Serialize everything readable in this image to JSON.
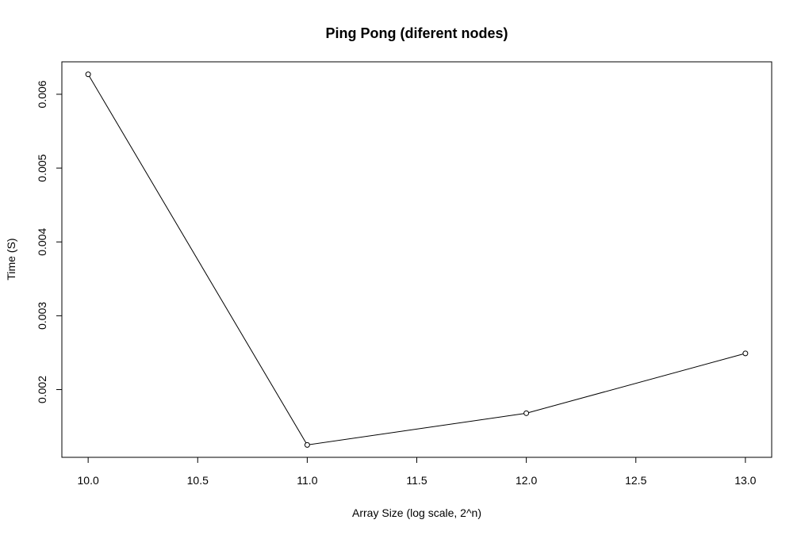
{
  "chart_data": {
    "type": "line",
    "title": "Ping Pong (diferent nodes)",
    "xlabel": "Array Size (log scale, 2^n)",
    "ylabel": "Time (S)",
    "xlim": [
      9.88,
      13.12
    ],
    "ylim": [
      0.0010824,
      0.0064394
    ],
    "x_ticks": [
      10.0,
      10.5,
      11.0,
      11.5,
      12.0,
      12.5,
      13.0
    ],
    "x_tick_labels": [
      "10.0",
      "10.5",
      "11.0",
      "11.5",
      "12.0",
      "12.5",
      "13.0"
    ],
    "y_ticks": [
      0.002,
      0.003,
      0.004,
      0.005,
      0.006
    ],
    "y_tick_labels": [
      "0.002",
      "0.003",
      "0.004",
      "0.005",
      "0.006"
    ],
    "grid": false,
    "markers": "open-circle",
    "series": [
      {
        "x": [
          10,
          11,
          12,
          13
        ],
        "values": [
          0.00627,
          0.00125,
          0.00168,
          0.00249
        ]
      }
    ]
  }
}
